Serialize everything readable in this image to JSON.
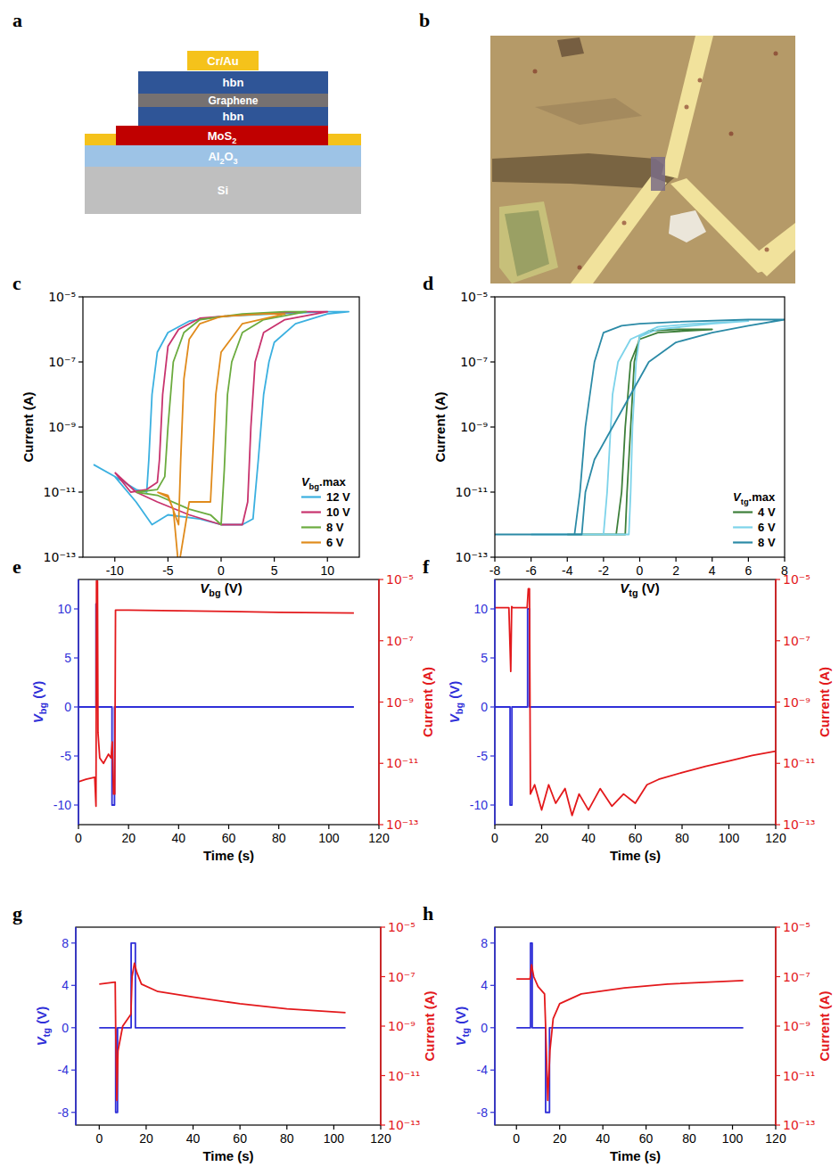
{
  "schematic": {
    "panel": "a",
    "layers": [
      {
        "label": "Cr/Au",
        "color": "#f5c21b"
      },
      {
        "label": "hbn",
        "color": "#2f5597"
      },
      {
        "label": "Graphene",
        "color": "#767171"
      },
      {
        "label": "hbn",
        "color": "#2f5597"
      },
      {
        "label": "MoS2",
        "color": "#c00000"
      },
      {
        "label": "Al2O3",
        "color": "#9dc3e6"
      },
      {
        "label": "Si",
        "color": "#bfbfbf"
      }
    ]
  },
  "image": {
    "panel": "b"
  },
  "chart_data": [
    {
      "panel": "c",
      "type": "line",
      "x_label": "Vbg (V)",
      "y_label": "Current (A)",
      "log": "y",
      "grid": false,
      "xlim": [
        -13,
        13
      ],
      "xticks": [
        -10,
        -5,
        0,
        5,
        10
      ],
      "ylim": [
        1e-13,
        1e-05
      ],
      "yticks": [
        {
          "value": 1e-13,
          "label": "10⁻¹³"
        },
        {
          "value": 1e-11,
          "label": "10⁻¹¹"
        },
        {
          "value": 1e-09,
          "label": "10⁻⁹"
        },
        {
          "value": 1e-07,
          "label": "10⁻⁷"
        },
        {
          "value": 1e-05,
          "label": "10⁻⁵"
        }
      ],
      "legend": "lower right",
      "legend_title": "Vbg.max",
      "series": [
        {
          "name": "12 V",
          "color": "#3bb0e0",
          "x": [
            -12,
            -10,
            -8,
            -6.5,
            -5,
            -2,
            0,
            2,
            3,
            3.5,
            4,
            4.5,
            5,
            7,
            10,
            12,
            10,
            5,
            0,
            -3,
            -5,
            -6,
            -6.5,
            -6.8,
            -7,
            -8,
            -10,
            -12
          ],
          "values": [
            7e-11,
            3e-11,
            5e-12,
            1e-12,
            2e-12,
            1.5e-12,
            1e-12,
            1e-12,
            1.5e-12,
            1e-10,
            1e-08,
            1e-07,
            4e-07,
            1.5e-06,
            3e-06,
            3.5e-06,
            3.5e-06,
            3e-06,
            2.5e-06,
            1.8e-06,
            8e-07,
            2e-07,
            1e-08,
            1e-10,
            1e-11,
            1.2e-11,
            3e-11,
            7e-11
          ]
        },
        {
          "name": "10 V",
          "color": "#c8336e",
          "x": [
            -10,
            -8,
            -6,
            -3,
            0,
            2,
            2.5,
            2.8,
            3.2,
            4,
            6,
            10,
            8,
            3,
            -2,
            -4,
            -5,
            -5.5,
            -5.8,
            -6,
            -7,
            -8.5,
            -10
          ],
          "values": [
            4e-11,
            1e-11,
            5e-12,
            2e-12,
            1e-12,
            1e-12,
            5e-12,
            1e-09,
            1e-07,
            8e-07,
            2e-06,
            3.5e-06,
            3.5e-06,
            3e-06,
            2.2e-06,
            1e-06,
            3e-07,
            1e-08,
            1e-10,
            2e-11,
            1.2e-11,
            1e-11,
            4e-11
          ]
        },
        {
          "name": "8 V",
          "color": "#6bab3e",
          "x": [
            -8,
            -6,
            -3,
            -1,
            0,
            0.3,
            0.6,
            1,
            2,
            4,
            8,
            6,
            2,
            -2,
            -3.5,
            -4.5,
            -5,
            -5.3,
            -6,
            -8
          ],
          "values": [
            1e-11,
            8e-12,
            3e-12,
            2e-12,
            1e-12,
            5e-11,
            1e-08,
            1e-07,
            8e-07,
            2e-06,
            3.5e-06,
            3.5e-06,
            3e-06,
            2e-06,
            8e-07,
            1e-07,
            1e-09,
            3e-11,
            1.2e-11,
            1e-11
          ]
        },
        {
          "name": "6 V",
          "color": "#e08b1c",
          "x": [
            -6,
            -5,
            -4.5,
            -4,
            -3,
            -1,
            -0.8,
            -0.5,
            0,
            2,
            6,
            4,
            0,
            -2,
            -3,
            -3.5,
            -3.8,
            -4,
            -5,
            -6
          ],
          "values": [
            1e-11,
            7e-12,
            3e-12,
            5e-14,
            5e-12,
            5e-12,
            1e-10,
            1e-08,
            2e-07,
            1.5e-06,
            3e-06,
            3e-06,
            2.5e-06,
            1.5e-06,
            5e-07,
            3e-08,
            1e-10,
            1e-12,
            8e-12,
            1e-11
          ]
        }
      ]
    },
    {
      "panel": "d",
      "type": "line",
      "x_label": "Vtg (V)",
      "y_label": "Current (A)",
      "log": "y",
      "grid": false,
      "xlim": [
        -8,
        8
      ],
      "xticks": [
        -8,
        -6,
        -4,
        -2,
        0,
        2,
        4,
        6,
        8
      ],
      "ylim": [
        1e-13,
        1e-05
      ],
      "yticks": [
        {
          "value": 1e-13,
          "label": "10⁻¹³"
        },
        {
          "value": 1e-11,
          "label": "10⁻¹¹"
        },
        {
          "value": 1e-09,
          "label": "10⁻⁹"
        },
        {
          "value": 1e-07,
          "label": "10⁻⁷"
        },
        {
          "value": 1e-05,
          "label": "10⁻⁵"
        }
      ],
      "legend": "lower right",
      "legend_title": "Vtg.max",
      "series": [
        {
          "name": "4 V",
          "color": "#3d7f3a",
          "x": [
            -4,
            -1.3,
            -1,
            -0.8,
            -0.5,
            0,
            1,
            4,
            2,
            0.5,
            0,
            -0.3,
            -0.5,
            -0.7,
            -0.8,
            -4
          ],
          "values": [
            5e-13,
            5e-13,
            1e-11,
            1e-09,
            1e-07,
            5e-07,
            8e-07,
            1e-06,
            1e-06,
            9e-07,
            6e-07,
            1e-07,
            1e-09,
            1e-11,
            5e-13,
            5e-13
          ]
        },
        {
          "name": "6 V",
          "color": "#7dd3ea",
          "x": [
            -6,
            -2,
            -1.8,
            -1.5,
            -1.2,
            -0.5,
            1,
            3,
            6,
            4,
            1,
            0,
            -0.2,
            -0.4,
            -0.5,
            -0.6,
            -6
          ],
          "values": [
            5e-13,
            5e-13,
            1e-11,
            1e-08,
            1e-07,
            5e-07,
            1.2e-06,
            1.5e-06,
            1.8e-06,
            1.5e-06,
            1e-06,
            6e-07,
            1e-07,
            1e-09,
            1e-11,
            5e-13,
            5e-13
          ]
        },
        {
          "name": "8 V",
          "color": "#2b8aa6",
          "x": [
            -8,
            -3.2,
            -3,
            -2.5,
            -1.5,
            -0.5,
            0.5,
            2,
            4,
            6,
            8,
            6,
            2,
            0,
            -1,
            -2,
            -2.5,
            -3,
            -3.3,
            -3.6,
            -8
          ],
          "values": [
            5e-13,
            5e-13,
            1e-11,
            1e-10,
            1e-09,
            1e-08,
            1e-07,
            4e-07,
            8e-07,
            1.3e-06,
            2e-06,
            2e-06,
            1.7e-06,
            1.5e-06,
            1.3e-06,
            8e-07,
            1e-07,
            1e-09,
            1e-11,
            5e-13,
            5e-13
          ]
        }
      ]
    },
    {
      "panel": "e",
      "type": "line",
      "x_label": "Time (s)",
      "y_label": "Vbg (V)",
      "y2_label": "Current (A)",
      "log": "y2",
      "grid": false,
      "xlim": [
        0,
        120
      ],
      "xticks": [
        0,
        20,
        40,
        60,
        80,
        100,
        120
      ],
      "ylim": [
        -12,
        13
      ],
      "yticks": [
        -10,
        -5,
        0,
        5,
        10
      ],
      "y2lim": [
        1e-13,
        1e-05
      ],
      "y2ticks": [
        {
          "value": 1e-13,
          "label": "10⁻¹³"
        },
        {
          "value": 1e-11,
          "label": "10⁻¹¹"
        },
        {
          "value": 1e-09,
          "label": "10⁻⁹"
        },
        {
          "value": 1e-07,
          "label": "10⁻⁷"
        },
        {
          "value": 1e-05,
          "label": "10⁻⁵"
        }
      ],
      "series": [
        {
          "color": "#2f2fd8",
          "x": [
            0,
            7,
            7,
            7.4,
            7.4,
            13.4,
            13.4,
            14.4,
            14.4,
            110
          ],
          "values": [
            0,
            0,
            10.5,
            10.5,
            0,
            0,
            -10,
            -10,
            0,
            0
          ]
        },
        {
          "color": "#e3191c",
          "axis": "y2",
          "x": [
            0,
            3,
            6.5,
            7,
            7.2,
            7.6,
            7.8,
            8.5,
            10,
            12,
            13,
            13.5,
            14,
            14.5,
            14.8,
            20,
            40,
            60,
            80,
            110
          ],
          "values": [
            2.5e-12,
            3e-12,
            3.5e-12,
            4e-13,
            9e-06,
            9e-06,
            1e-10,
            1.5e-11,
            1e-11,
            2e-11,
            1.5e-11,
            5e-11,
            1e-12,
            1e-12,
            1e-06,
            1e-06,
            9.5e-07,
            9e-07,
            8.5e-07,
            8e-07
          ]
        }
      ]
    },
    {
      "panel": "f",
      "type": "line",
      "x_label": "Time (s)",
      "y_label": "Vbg (V)",
      "y2_label": "Current (A)",
      "log": "y2",
      "grid": false,
      "xlim": [
        0,
        120
      ],
      "xticks": [
        0,
        20,
        40,
        60,
        80,
        100,
        120
      ],
      "ylim": [
        -12,
        13
      ],
      "yticks": [
        -10,
        -5,
        0,
        5,
        10
      ],
      "y2lim": [
        1e-13,
        1e-05
      ],
      "y2ticks": [
        {
          "value": 1e-13,
          "label": "10⁻¹³"
        },
        {
          "value": 1e-11,
          "label": "10⁻¹¹"
        },
        {
          "value": 1e-09,
          "label": "10⁻⁹"
        },
        {
          "value": 1e-07,
          "label": "10⁻⁷"
        },
        {
          "value": 1e-05,
          "label": "10⁻⁵"
        }
      ],
      "series": [
        {
          "color": "#2f2fd8",
          "x": [
            0,
            6.5,
            6.5,
            7.3,
            7.3,
            14,
            14,
            14.8,
            14.8,
            120
          ],
          "values": [
            0,
            0,
            -10,
            -10,
            0,
            0,
            10,
            10,
            0,
            0
          ]
        },
        {
          "color": "#e3191c",
          "axis": "y2",
          "x": [
            0,
            6,
            6.8,
            7.2,
            7.6,
            10,
            13.8,
            14.3,
            14.8,
            15.2,
            17,
            20,
            23,
            26,
            30,
            33,
            36,
            40,
            45,
            50,
            55,
            60,
            65,
            70,
            80,
            90,
            100,
            110,
            120
          ],
          "values": [
            1.2e-06,
            1.2e-06,
            1e-08,
            1.3e-06,
            1.2e-06,
            1.2e-06,
            1.2e-06,
            5e-06,
            5e-06,
            1e-12,
            2e-12,
            3e-13,
            2e-12,
            5e-13,
            1.5e-12,
            2e-13,
            1e-12,
            3e-13,
            1.5e-12,
            4e-13,
            1e-12,
            5e-13,
            2e-12,
            3e-12,
            5e-12,
            8e-12,
            1.2e-11,
            1.8e-11,
            2.5e-11
          ]
        }
      ]
    },
    {
      "panel": "g",
      "type": "line",
      "x_label": "Time (s)",
      "y_label": "Vtg (V)",
      "y2_label": "Current (A)",
      "log": "y2",
      "grid": false,
      "xlim": [
        -10,
        120
      ],
      "xticks": [
        0,
        20,
        40,
        60,
        80,
        100,
        120
      ],
      "ylim": [
        -9.2,
        9.5
      ],
      "yticks": [
        -8,
        -4,
        0,
        4,
        8
      ],
      "y2lim": [
        1e-13,
        1e-05
      ],
      "y2ticks": [
        {
          "value": 1e-13,
          "label": "10⁻¹³"
        },
        {
          "value": 1e-11,
          "label": "10⁻¹¹"
        },
        {
          "value": 1e-09,
          "label": "10⁻⁹"
        },
        {
          "value": 1e-07,
          "label": "10⁻⁷"
        },
        {
          "value": 1e-05,
          "label": "10⁻⁵"
        }
      ],
      "series": [
        {
          "color": "#2f2fd8",
          "x": [
            0,
            7,
            7,
            7.8,
            7.8,
            13.6,
            13.6,
            15.4,
            15.4,
            105
          ],
          "values": [
            0,
            0,
            -8,
            -8,
            0,
            0,
            8,
            8,
            0,
            0
          ]
        },
        {
          "color": "#e3191c",
          "axis": "y2",
          "x": [
            0,
            6.8,
            7,
            7.5,
            8,
            10,
            13.5,
            14,
            15,
            16,
            18,
            25,
            40,
            60,
            80,
            105
          ],
          "values": [
            5e-08,
            6e-08,
            1e-09,
            1e-12,
            1e-10,
            1e-09,
            3e-09,
            1e-07,
            3.5e-07,
            1.5e-07,
            5e-08,
            2.5e-08,
            1.5e-08,
            8e-09,
            5e-09,
            3.5e-09
          ]
        }
      ]
    },
    {
      "panel": "h",
      "type": "line",
      "x_label": "Time (s)",
      "y_label": "Vtg (V)",
      "y2_label": "Current (A)",
      "log": "y2",
      "grid": false,
      "xlim": [
        -10,
        120
      ],
      "xticks": [
        0,
        20,
        40,
        60,
        80,
        100,
        120
      ],
      "ylim": [
        -9.2,
        9.5
      ],
      "yticks": [
        -8,
        -4,
        0,
        4,
        8
      ],
      "y2lim": [
        1e-13,
        1e-05
      ],
      "y2ticks": [
        {
          "value": 1e-13,
          "label": "10⁻¹³"
        },
        {
          "value": 1e-11,
          "label": "10⁻¹¹"
        },
        {
          "value": 1e-09,
          "label": "10⁻⁹"
        },
        {
          "value": 1e-07,
          "label": "10⁻⁷"
        },
        {
          "value": 1e-05,
          "label": "10⁻⁵"
        }
      ],
      "series": [
        {
          "color": "#2f2fd8",
          "x": [
            0,
            6.5,
            6.5,
            7.3,
            7.3,
            13.5,
            13.5,
            15.3,
            15.3,
            105
          ],
          "values": [
            0,
            0,
            8,
            8,
            0,
            0,
            -8,
            -8,
            0,
            0
          ]
        },
        {
          "color": "#e3191c",
          "axis": "y2",
          "x": [
            0,
            6.3,
            7,
            8,
            10,
            13,
            13.5,
            14.5,
            15.5,
            17,
            20,
            30,
            50,
            70,
            105
          ],
          "values": [
            8e-08,
            8e-08,
            3e-07,
            1e-07,
            4e-08,
            2e-08,
            1e-09,
            1e-12,
            1e-10,
            2e-09,
            8e-09,
            2e-08,
            3.5e-08,
            5e-08,
            7e-08
          ]
        }
      ]
    }
  ]
}
